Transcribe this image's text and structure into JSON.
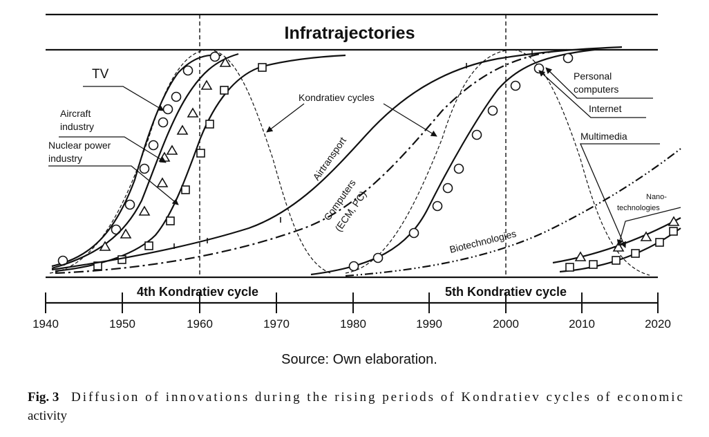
{
  "title": "Infratrajectories",
  "labels": {
    "tv": "TV",
    "aircraft_1": "Aircraft",
    "aircraft_2": "industry",
    "nuclear_1": "Nuclear power",
    "nuclear_2": "industry",
    "kondratiev": "Kondratiev cycles",
    "airtransport": "Airtransport",
    "computers_1": "Computers",
    "computers_2": "(ECM, PC)",
    "biotech": "Biotechnologies",
    "personal_1": "Personal",
    "personal_2": "computers",
    "internet": "Internet",
    "multimedia": "Multimedia",
    "nano_1": "Nano-",
    "nano_2": "technologies"
  },
  "cycles": {
    "fourth": "4th Kondratiev cycle",
    "fifth": "5th Kondratiev cycle"
  },
  "axis": {
    "ticks": [
      "1940",
      "1950",
      "1960",
      "1970",
      "1980",
      "1990",
      "2000",
      "2010",
      "2020"
    ]
  },
  "source": "Source: Own elaboration.",
  "caption": {
    "label": "Fig. 3",
    "line1": "Diffusion of innovations during the rising periods of Kondratiev cycles of economic",
    "line2": "activity"
  }
}
